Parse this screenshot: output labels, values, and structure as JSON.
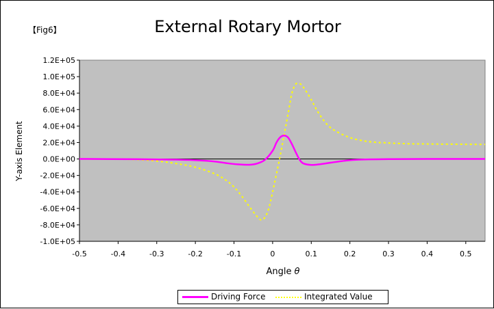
{
  "figure_label": "【Fig6】",
  "chart_data": {
    "type": "line",
    "title": "External Rotary Mortor",
    "xlabel": "Angle",
    "xlabel_symbol": "θ",
    "ylabel": "Y-axis Element",
    "xlim": [
      -0.5,
      0.55
    ],
    "ylim": [
      -100000,
      120000
    ],
    "x_ticks": [
      "-0.5",
      "-0.4",
      "-0.3",
      "-0.2",
      "-0.1",
      "0",
      "0.1",
      "0.2",
      "0.3",
      "0.4",
      "0.5"
    ],
    "y_ticks": [
      "1.2E+05",
      "1.0E+05",
      "8.0E+04",
      "6.0E+04",
      "4.0E+04",
      "2.0E+04",
      "0.0E+00",
      "-2.0E+04",
      "-4.0E+04",
      "-6.0E+04",
      "-8.0E+04",
      "-1.0E+05"
    ],
    "plot_background": "#c0c0c0",
    "grid": false,
    "legend_position": "bottom",
    "series": [
      {
        "name": "Driving Force",
        "color": "#ff00ff",
        "style": "solid",
        "x": [
          -0.5,
          -0.35,
          -0.25,
          -0.2,
          -0.15,
          -0.12,
          -0.09,
          -0.06,
          -0.04,
          -0.02,
          0.0,
          0.01,
          0.02,
          0.03,
          0.04,
          0.05,
          0.06,
          0.07,
          0.08,
          0.1,
          0.12,
          0.15,
          0.18,
          0.22,
          0.3,
          0.4,
          0.55
        ],
        "values": [
          0,
          -300,
          -800,
          -1500,
          -3000,
          -5000,
          -6500,
          -7000,
          -5500,
          -1000,
          10000,
          20000,
          26500,
          28500,
          26000,
          18000,
          8000,
          -1000,
          -5500,
          -7200,
          -6500,
          -4500,
          -2500,
          -900,
          -200,
          0,
          0
        ]
      },
      {
        "name": "Integrated Value",
        "color": "#ffff00",
        "style": "dotted",
        "x": [
          -0.5,
          -0.4,
          -0.35,
          -0.3,
          -0.25,
          -0.2,
          -0.15,
          -0.12,
          -0.1,
          -0.08,
          -0.06,
          -0.04,
          -0.03,
          -0.02,
          -0.01,
          0.0,
          0.02,
          0.04,
          0.05,
          0.06,
          0.07,
          0.08,
          0.1,
          0.12,
          0.15,
          0.2,
          0.25,
          0.3,
          0.35,
          0.4,
          0.45,
          0.5,
          0.55
        ],
        "values": [
          0,
          -300,
          -800,
          -2500,
          -5500,
          -10000,
          -18000,
          -26000,
          -34000,
          -45000,
          -58000,
          -70000,
          -74000,
          -71000,
          -60000,
          -40000,
          5000,
          55000,
          80000,
          91000,
          91500,
          87000,
          72000,
          55000,
          38000,
          26000,
          21000,
          19500,
          18500,
          18200,
          18000,
          17800,
          17700
        ]
      }
    ]
  }
}
